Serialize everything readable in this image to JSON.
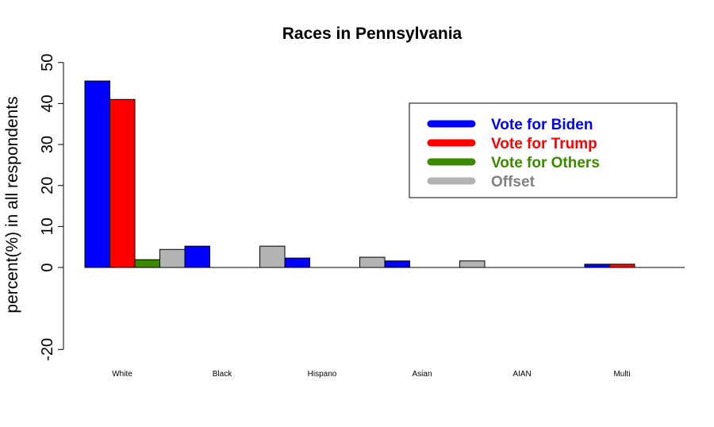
{
  "chart_data": {
    "type": "bar",
    "title": "Races in Pennsylvania",
    "xlabel": "",
    "ylabel": "percent(%) in all respondents",
    "ylim": [
      -20,
      50
    ],
    "yticks": [
      -20,
      0,
      10,
      20,
      30,
      40,
      50
    ],
    "categories": [
      "White",
      "Black",
      "Hispano",
      "Asian",
      "AIAN",
      "Multi"
    ],
    "series": [
      {
        "name": "Vote for Biden",
        "color": "#0000ff",
        "values": [
          45.5,
          5.2,
          2.3,
          1.6,
          0.0,
          0.8
        ]
      },
      {
        "name": "Vote for Trump",
        "color": "#ff0000",
        "values": [
          41.0,
          0.0,
          0.0,
          0.0,
          0.0,
          0.8
        ]
      },
      {
        "name": "Vote for Others",
        "color": "#3a8a00",
        "values": [
          1.9,
          0.0,
          0.0,
          0.0,
          0.0,
          0.0
        ]
      },
      {
        "name": "Offset",
        "color": "#b3b3b3",
        "values": [
          4.4,
          5.2,
          2.5,
          1.6,
          0.0,
          0.0
        ]
      }
    ],
    "legend_text_colors": [
      "#0000ff",
      "#ff0000",
      "#3a8a00",
      "#808080"
    ],
    "legend_position": "top-right",
    "grid": false
  }
}
